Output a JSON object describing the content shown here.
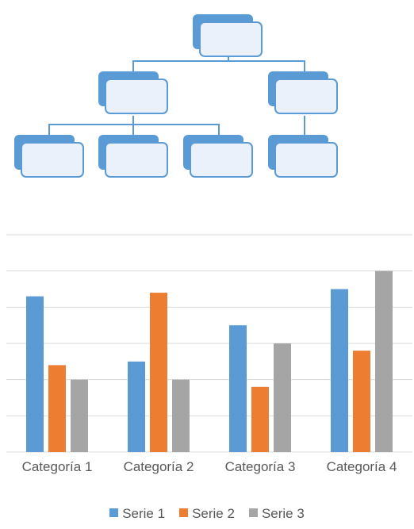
{
  "org_chart": {
    "levels": [
      {
        "nodes": [
          {
            "text": ""
          }
        ]
      },
      {
        "nodes": [
          {
            "text": ""
          },
          {
            "text": ""
          }
        ]
      },
      {
        "nodes": [
          {
            "text": ""
          },
          {
            "text": ""
          },
          {
            "text": ""
          },
          {
            "text": ""
          }
        ]
      }
    ]
  },
  "chart_data": {
    "type": "bar",
    "categories": [
      "Categoría 1",
      "Categoría 2",
      "Categoría 3",
      "Categoría 4"
    ],
    "series": [
      {
        "name": "Serie 1",
        "values": [
          4.3,
          2.5,
          3.5,
          4.5
        ],
        "color": "#5b9bd5"
      },
      {
        "name": "Serie 2",
        "values": [
          2.4,
          4.4,
          1.8,
          2.8
        ],
        "color": "#ed7d31"
      },
      {
        "name": "Serie 3",
        "values": [
          2,
          2,
          3,
          5
        ],
        "color": "#a5a5a5"
      }
    ],
    "ylim": [
      0,
      6
    ],
    "grid": true,
    "legend_position": "bottom",
    "title": "",
    "xlabel": "",
    "ylabel": ""
  }
}
